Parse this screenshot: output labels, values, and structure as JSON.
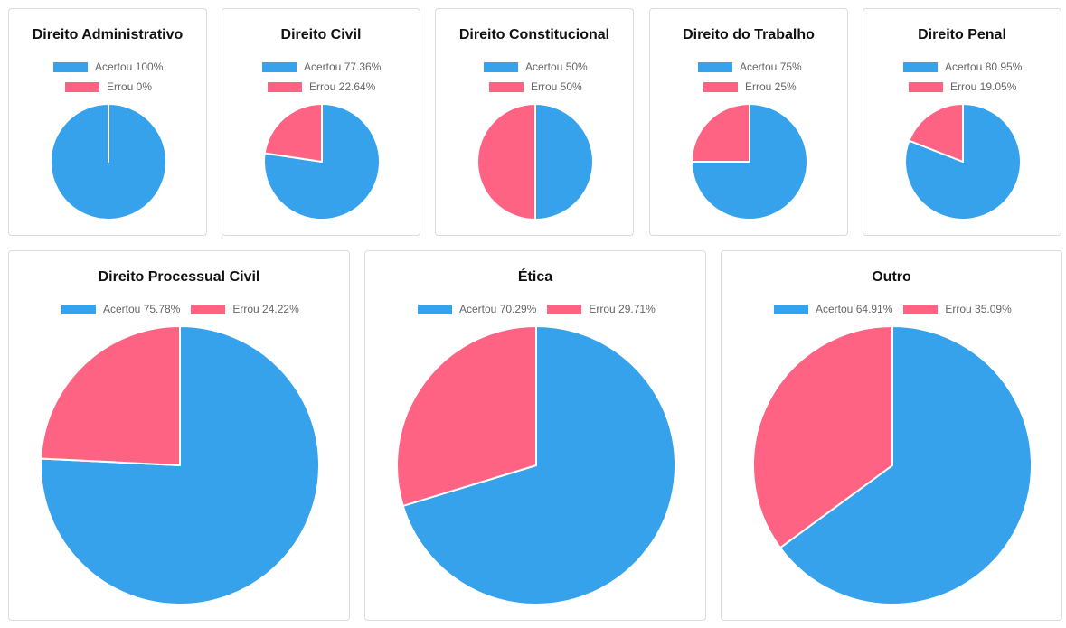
{
  "colors": {
    "acertou": "#36a2eb",
    "errou": "#ff6384"
  },
  "chart_data": [
    {
      "type": "pie",
      "title": "Direito Administrativo",
      "categories": [
        "Acertou 100%",
        "Errou 0%"
      ],
      "values": [
        100,
        0
      ]
    },
    {
      "type": "pie",
      "title": "Direito Civil",
      "categories": [
        "Acertou 77.36%",
        "Errou 22.64%"
      ],
      "values": [
        77.36,
        22.64
      ]
    },
    {
      "type": "pie",
      "title": "Direito Constitucional",
      "categories": [
        "Acertou 50%",
        "Errou 50%"
      ],
      "values": [
        50,
        50
      ]
    },
    {
      "type": "pie",
      "title": "Direito do Trabalho",
      "categories": [
        "Acertou 75%",
        "Errou 25%"
      ],
      "values": [
        75,
        25
      ]
    },
    {
      "type": "pie",
      "title": "Direito Penal",
      "categories": [
        "Acertou 80.95%",
        "Errou 19.05%"
      ],
      "values": [
        80.95,
        19.05
      ]
    },
    {
      "type": "pie",
      "title": "Direito Processual Civil",
      "categories": [
        "Acertou 75.78%",
        "Errou 24.22%"
      ],
      "values": [
        75.78,
        24.22
      ]
    },
    {
      "type": "pie",
      "title": "Ética",
      "categories": [
        "Acertou 70.29%",
        "Errou 29.71%"
      ],
      "values": [
        70.29,
        29.71
      ]
    },
    {
      "type": "pie",
      "title": "Outro",
      "categories": [
        "Acertou 64.91%",
        "Errou 35.09%"
      ],
      "values": [
        64.91,
        35.09
      ]
    }
  ]
}
